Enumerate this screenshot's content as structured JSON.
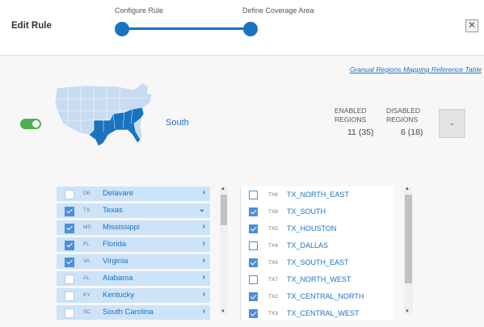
{
  "header": {
    "title": "Edit Rule",
    "steps": [
      "Configure Rule",
      "Define Coverage Area"
    ],
    "close_label": "✕"
  },
  "main": {
    "reference_link": "Granual Regions Mapping Reference Table",
    "region_enabled": true,
    "region_name": "South",
    "stats": {
      "enabled_label_1": "ENABLED",
      "enabled_label_2": "REGIONS",
      "enabled_value": "11 (35)",
      "disabled_label_1": "DISABLED",
      "disabled_label_2": "REGIONS",
      "disabled_value": "6 (18)"
    },
    "dropdown_icon": "chevron-down-icon"
  },
  "states": [
    {
      "abbr": "DE",
      "name": "Delavare",
      "checked": false,
      "expanded": false
    },
    {
      "abbr": "TX",
      "name": "Texas",
      "checked": true,
      "expanded": true
    },
    {
      "abbr": "MS",
      "name": "Mississippi",
      "checked": true,
      "expanded": false
    },
    {
      "abbr": "FL",
      "name": "Florida",
      "checked": true,
      "expanded": false
    },
    {
      "abbr": "VA",
      "name": "Virginia",
      "checked": true,
      "expanded": false
    },
    {
      "abbr": "AL",
      "name": "Alabama",
      "checked": false,
      "expanded": false
    },
    {
      "abbr": "KY",
      "name": "Kentucky",
      "checked": false,
      "expanded": false
    },
    {
      "abbr": "SC",
      "name": "South Carolina",
      "checked": false,
      "expanded": false
    }
  ],
  "subregions": [
    {
      "abbr": "TX6",
      "name": "TX_NORTH_EAST",
      "checked": false
    },
    {
      "abbr": "TX8",
      "name": "TX_SOUTH",
      "checked": true
    },
    {
      "abbr": "TX5",
      "name": "TX_HOUSTON",
      "checked": true
    },
    {
      "abbr": "TX4",
      "name": "TX_DALLAS",
      "checked": false
    },
    {
      "abbr": "TX9",
      "name": "TX_SOUTH_EAST",
      "checked": true
    },
    {
      "abbr": "TX7",
      "name": "TX_NORTH_WEST",
      "checked": false
    },
    {
      "abbr": "TX2",
      "name": "TX_CENTRAL_NORTH",
      "checked": true
    },
    {
      "abbr": "TX3",
      "name": "TX_CENTRAL_WEST",
      "checked": true
    }
  ],
  "colors": {
    "accent": "#1a73c1",
    "toggle_on": "#4caf50",
    "map_light": "#c7dcf2",
    "map_selected": "#1a73c1"
  }
}
